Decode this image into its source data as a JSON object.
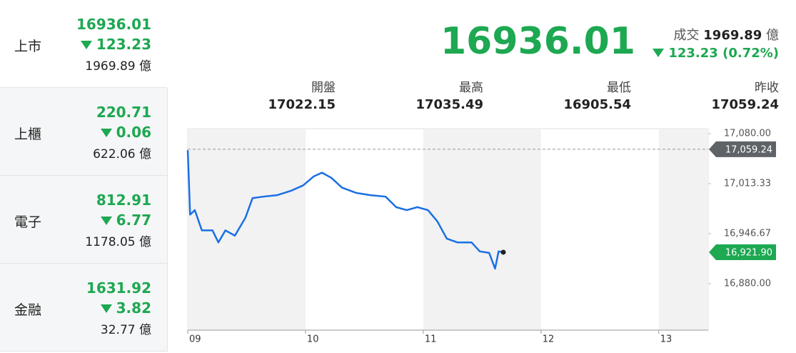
{
  "sidebar": [
    {
      "name": "上市",
      "price": "16936.01",
      "change": "123.23",
      "volume": "1969.89 億"
    },
    {
      "name": "上櫃",
      "price": "220.71",
      "change": "0.06",
      "volume": "622.06 億"
    },
    {
      "name": "電子",
      "price": "812.91",
      "change": "6.77",
      "volume": "1178.05 億"
    },
    {
      "name": "金融",
      "price": "1631.92",
      "change": "3.82",
      "volume": "32.77 億"
    }
  ],
  "quote": {
    "price": "16936.01",
    "volume_label": "成交",
    "volume": "1969.89",
    "volume_unit": "億",
    "change": "123.23 (0.72%)",
    "stats": [
      {
        "label": "開盤",
        "value": "17022.15"
      },
      {
        "label": "最高",
        "value": "17035.49"
      },
      {
        "label": "最低",
        "value": "16905.54"
      },
      {
        "label": "昨收",
        "value": "17059.24"
      }
    ]
  },
  "chart_data": {
    "type": "line",
    "x": [
      9,
      9.02,
      9.06,
      9.12,
      9.21,
      9.26,
      9.32,
      9.4,
      9.49,
      9.55,
      9.64,
      9.76,
      9.88,
      9.98,
      10.07,
      10.14,
      10.22,
      10.31,
      10.43,
      10.55,
      10.68,
      10.77,
      10.86,
      10.95,
      11.04,
      11.12,
      11.2,
      11.29,
      11.41,
      11.48,
      11.56,
      11.61,
      11.64,
      11.68
    ],
    "series": [
      {
        "color": "#1a6fe6",
        "values": [
          17058,
          16972,
          16978,
          16951,
          16951,
          16935,
          16951,
          16944,
          16968,
          16994,
          16996,
          16998,
          17004,
          17011,
          17023,
          17028,
          17021,
          17008,
          17001,
          16998,
          16996,
          16982,
          16978,
          16982,
          16978,
          16963,
          16940,
          16935,
          16935,
          16923,
          16921,
          16900,
          16923,
          16921.9
        ]
      }
    ],
    "xlim": [
      9,
      13.42
    ],
    "xticks": [
      {
        "value": 9,
        "label": "09"
      },
      10,
      11,
      12,
      13
    ],
    "ylim": [
      16818,
      17086.7
    ],
    "yticks": [
      {
        "value": 16880,
        "label": "16,880.00"
      },
      {
        "value": 16946.67,
        "label": "16,946.67"
      },
      {
        "value": 17013.33,
        "label": "17,013.33"
      },
      {
        "value": 17080,
        "label": "17,080.00"
      }
    ],
    "reference_line": {
      "value": 17059.24,
      "label": "17,059.24"
    },
    "last": {
      "value": 16921.9,
      "label": "16,921.90"
    }
  }
}
